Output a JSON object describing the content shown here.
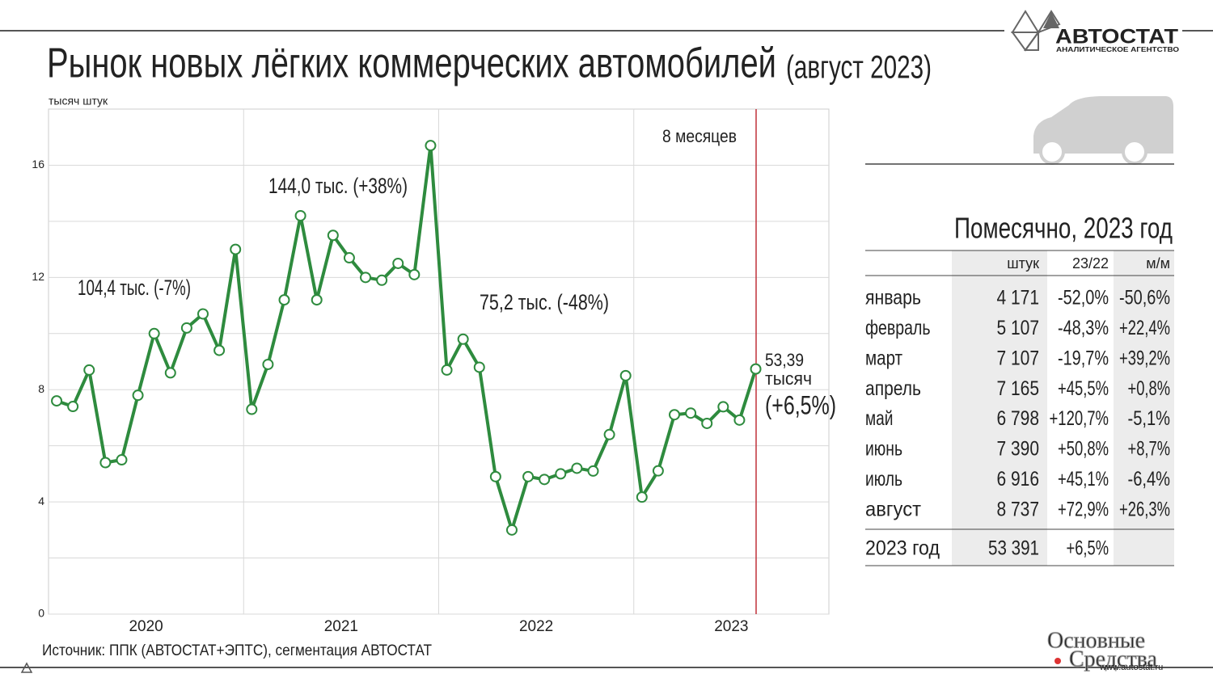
{
  "chart_data": {
    "type": "line",
    "title": "Рынок новых лёгких коммерческих автомобилей",
    "subtitle": "(август 2023)",
    "y_label": "тысяч штук",
    "categories": [
      "2020",
      null,
      null,
      null,
      null,
      null,
      null,
      null,
      null,
      null,
      null,
      null,
      "2021",
      null,
      null,
      null,
      null,
      null,
      null,
      null,
      null,
      null,
      null,
      null,
      "2022",
      null,
      null,
      null,
      null,
      null,
      null,
      null,
      null,
      null,
      null,
      null,
      "2023",
      null,
      null,
      null,
      null,
      null,
      null,
      null,
      null,
      null,
      null,
      null
    ],
    "series": [
      {
        "name": "Рынок",
        "color": "#2e8b3e",
        "values": [
          7.6,
          7.4,
          8.7,
          5.4,
          5.5,
          7.8,
          10.0,
          8.6,
          10.2,
          10.7,
          9.4,
          13.0,
          7.3,
          8.9,
          11.2,
          14.2,
          11.2,
          13.5,
          12.7,
          12.0,
          11.9,
          12.5,
          12.1,
          16.7,
          8.7,
          9.8,
          8.8,
          4.9,
          3.0,
          4.9,
          4.8,
          5.0,
          5.2,
          5.1,
          6.4,
          8.5,
          4.171,
          5.107,
          7.107,
          7.165,
          6.798,
          7.39,
          6.916,
          8.737,
          null,
          null,
          null,
          null
        ]
      }
    ],
    "ylim": [
      0,
      18
    ],
    "yticks": [
      0,
      4,
      8,
      12,
      16
    ],
    "ygrid_minor": [
      2,
      6,
      10,
      14
    ],
    "grid": true,
    "annotations": [
      "104,4 тыс. (-7%)",
      "144,0 тыс. (+38%)",
      "75,2 тыс. (-48%)"
    ],
    "last_label": [
      "53,39",
      "тысяч",
      "(+6,5%)"
    ],
    "marker_label": "8 месяцев",
    "source": "Источник: ППК (АВТОСТАТ+ЭПТС), сегментация АВТОСТАТ"
  },
  "logo": {
    "name": "АВТОСТАТ",
    "tagline": "АНАЛИТИЧЕСКОЕ АГЕНТСТВО"
  },
  "table": {
    "title": "Помесячно, 2023 год",
    "header": [
      "штук",
      "23/22",
      "м/м"
    ],
    "rows": [
      [
        "январь",
        "4 171",
        "-52,0%",
        "-50,6%"
      ],
      [
        "февраль",
        "5 107",
        "-48,3%",
        "+22,4%"
      ],
      [
        "март",
        "7 107",
        "-19,7%",
        "+39,2%"
      ],
      [
        "апрель",
        "7 165",
        "+45,5%",
        "+0,8%"
      ],
      [
        "май",
        "6 798",
        "+120,7%",
        "-5,1%"
      ],
      [
        "июнь",
        "7 390",
        "+50,8%",
        "+8,7%"
      ],
      [
        "июль",
        "6 916",
        "+45,1%",
        "-6,4%"
      ],
      [
        "август",
        "8 737",
        "+72,9%",
        "+26,3%"
      ]
    ],
    "total": [
      "2023 год",
      "53 391",
      "+6,5%"
    ]
  },
  "watermark": {
    "line1": "Основные",
    "line2": "Средства",
    "site": "www.autostat.ru"
  }
}
